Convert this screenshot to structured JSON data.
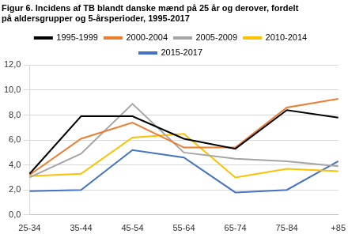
{
  "chart_data": {
    "type": "line",
    "title": [
      "Figur 6. Incidens af TB blandt danske mænd på 25 år og derover, fordelt",
      "på aldersgrupper og 5-årsperioder, 1995-2017"
    ],
    "categories": [
      "25-34",
      "35-44",
      "45-54",
      "55-64",
      "65-74",
      "75-84",
      "+85"
    ],
    "series": [
      {
        "name": "1995-1999",
        "color": "#000000",
        "values": [
          3.3,
          7.9,
          7.9,
          6.1,
          5.3,
          8.4,
          7.8
        ]
      },
      {
        "name": "2000-2004",
        "color": "#ed7d31",
        "values": [
          3.2,
          6.1,
          7.4,
          5.4,
          5.4,
          8.6,
          9.3
        ]
      },
      {
        "name": "2005-2009",
        "color": "#a5a5a5",
        "values": [
          3.0,
          4.9,
          8.9,
          5.0,
          4.5,
          4.3,
          3.9
        ]
      },
      {
        "name": "2010-2014",
        "color": "#ffc000",
        "values": [
          3.1,
          3.3,
          6.2,
          6.5,
          3.0,
          3.7,
          3.5
        ]
      },
      {
        "name": "2015-2017",
        "color": "#4472c4",
        "values": [
          1.9,
          2.0,
          5.2,
          4.6,
          1.8,
          2.0,
          4.3
        ]
      }
    ],
    "ylim": [
      0,
      12
    ],
    "yticks": [
      {
        "value": 0,
        "label": "0,0"
      },
      {
        "value": 2,
        "label": "2,0"
      },
      {
        "value": 4,
        "label": "4,0"
      },
      {
        "value": 6,
        "label": "6,0"
      },
      {
        "value": 8,
        "label": "8,0"
      },
      {
        "value": 10,
        "label": "10,0"
      },
      {
        "value": 12,
        "label": "12,0"
      }
    ],
    "grid": true,
    "legend": "top"
  }
}
